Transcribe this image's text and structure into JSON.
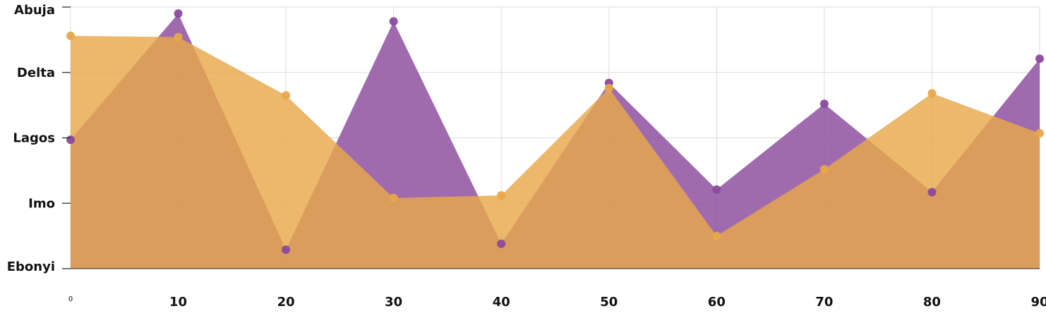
{
  "chart_data": {
    "type": "area",
    "title": "",
    "xlabel": "",
    "ylabel": "",
    "x": [
      0,
      10,
      20,
      30,
      40,
      50,
      60,
      70,
      80,
      90
    ],
    "x_tick_labels": [
      "0",
      "10",
      "20",
      "30",
      "40",
      "50",
      "60",
      "70",
      "80",
      "90"
    ],
    "xlim": [
      0,
      90
    ],
    "y_categories": [
      "Ebonyi",
      "Imo",
      "Lagos",
      "Delta",
      "Abuja"
    ],
    "ylim": [
      0,
      4
    ],
    "grid": true,
    "legend": "none",
    "series": [
      {
        "color": "#8B4A9C",
        "values": [
          1.97,
          3.9,
          0.29,
          3.78,
          0.38,
          2.84,
          1.21,
          2.52,
          1.17,
          3.21
        ]
      },
      {
        "color": "#E8A84A",
        "values": [
          3.56,
          3.54,
          2.65,
          1.08,
          1.12,
          2.76,
          0.5,
          1.52,
          2.68,
          2.07
        ]
      }
    ]
  }
}
